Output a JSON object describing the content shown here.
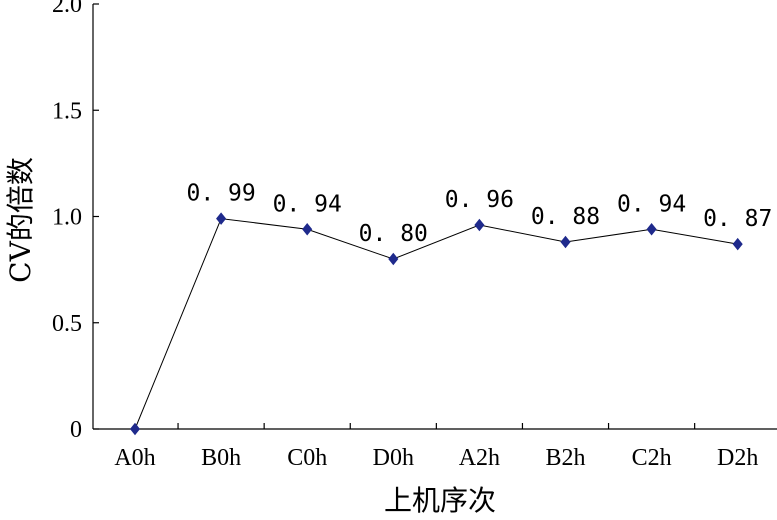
{
  "chart_data": {
    "type": "line",
    "title": "",
    "xlabel": "上机序次",
    "ylabel": "CV的倍数",
    "categories": [
      "A0h",
      "B0h",
      "C0h",
      "D0h",
      "A2h",
      "B2h",
      "C2h",
      "D2h"
    ],
    "yticks": [
      "0",
      "0.5",
      "1.0",
      "1.5",
      "2.0"
    ],
    "ylim": [
      0,
      2.0
    ],
    "grid": false,
    "series": [
      {
        "values": [
          0,
          0.99,
          0.94,
          0.8,
          0.96,
          0.88,
          0.94,
          0.87
        ],
        "data_labels": [
          "",
          "0. 99",
          "0. 94",
          "0. 80",
          "0. 96",
          "0. 88",
          "0. 94",
          "0. 87"
        ],
        "marker": "diamond",
        "marker_color": "#1f2a8c",
        "line_color": "#000000"
      }
    ]
  }
}
